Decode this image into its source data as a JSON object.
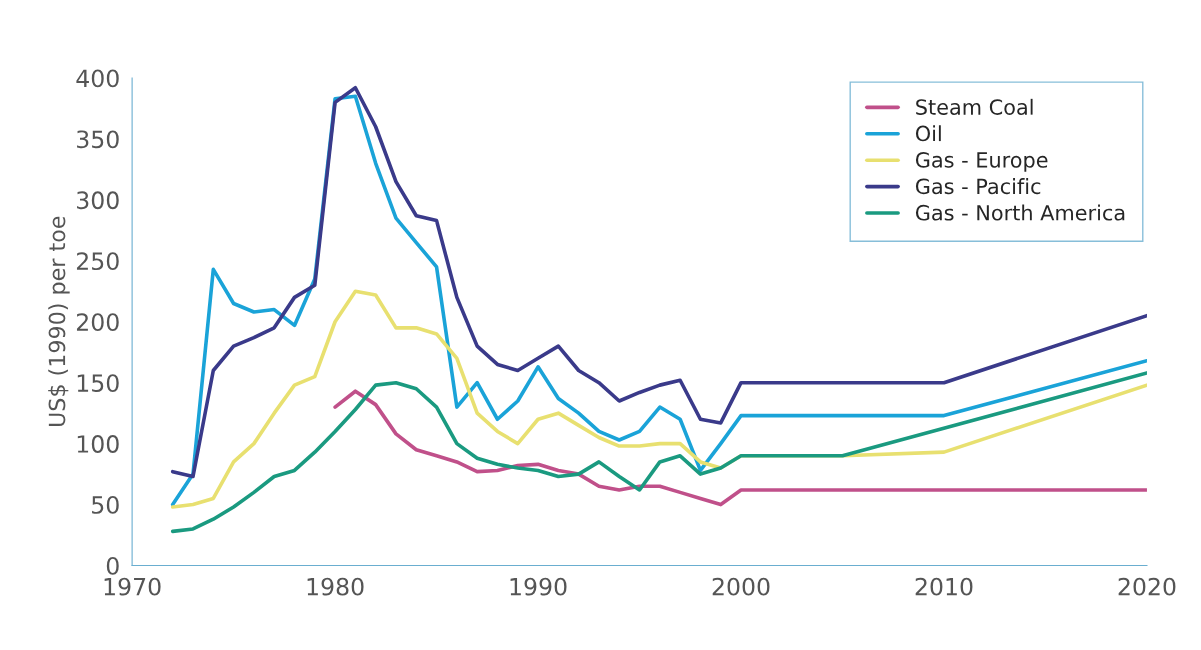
{
  "chart_data": {
    "type": "line",
    "ylabel": "US$ (1990) per toe",
    "xlim": [
      1970,
      2020
    ],
    "xticks": [
      1970,
      1980,
      1990,
      2000,
      2010,
      2020
    ],
    "ylim": [
      0,
      400
    ],
    "yticks": [
      0,
      50,
      100,
      150,
      200,
      250,
      300,
      350,
      400
    ],
    "grid": false,
    "legend": "top right",
    "marker": "none",
    "line_style": "solid",
    "series": [
      {
        "name": "Steam Coal",
        "color": "#c0508a",
        "x": [
          1980,
          1981,
          1982,
          1983,
          1984,
          1985,
          1986,
          1987,
          1988,
          1989,
          1990,
          1991,
          1992,
          1993,
          1994,
          1995,
          1996,
          1997,
          1998,
          1999,
          2000,
          2020
        ],
        "values": [
          130,
          143,
          132,
          108,
          95,
          90,
          85,
          77,
          78,
          82,
          83,
          78,
          75,
          65,
          62,
          65,
          65,
          60,
          55,
          50,
          62,
          62
        ]
      },
      {
        "name": "Oil",
        "color": "#1aa3d8",
        "x": [
          1972,
          1973,
          1974,
          1975,
          1976,
          1977,
          1978,
          1979,
          1980,
          1981,
          1982,
          1983,
          1984,
          1985,
          1986,
          1987,
          1988,
          1989,
          1990,
          1991,
          1992,
          1993,
          1994,
          1995,
          1996,
          1997,
          1998,
          1999,
          2000,
          2010,
          2020
        ],
        "values": [
          50,
          75,
          243,
          215,
          208,
          210,
          197,
          235,
          383,
          385,
          330,
          285,
          265,
          245,
          130,
          150,
          120,
          135,
          163,
          137,
          125,
          110,
          103,
          110,
          130,
          120,
          78,
          100,
          123,
          123,
          168
        ]
      },
      {
        "name": "Gas - Europe",
        "color": "#e8e070",
        "x": [
          1972,
          1973,
          1974,
          1975,
          1976,
          1977,
          1978,
          1979,
          1980,
          1981,
          1982,
          1983,
          1984,
          1985,
          1986,
          1987,
          1988,
          1989,
          1990,
          1991,
          1992,
          1993,
          1994,
          1995,
          1996,
          1997,
          1998,
          1999,
          2000,
          2005,
          2010,
          2020
        ],
        "values": [
          48,
          50,
          55,
          85,
          100,
          125,
          148,
          155,
          200,
          225,
          222,
          195,
          195,
          190,
          170,
          125,
          110,
          100,
          120,
          125,
          115,
          105,
          98,
          98,
          100,
          100,
          85,
          80,
          90,
          90,
          93,
          148
        ]
      },
      {
        "name": "Gas - Pacific",
        "color": "#3a3a8a",
        "x": [
          1972,
          1973,
          1974,
          1975,
          1976,
          1977,
          1978,
          1979,
          1980,
          1981,
          1982,
          1983,
          1984,
          1985,
          1986,
          1987,
          1988,
          1989,
          1990,
          1991,
          1992,
          1993,
          1994,
          1995,
          1996,
          1997,
          1998,
          1999,
          2000,
          2010,
          2020
        ],
        "values": [
          77,
          73,
          160,
          180,
          187,
          195,
          220,
          230,
          380,
          392,
          360,
          315,
          287,
          283,
          220,
          180,
          165,
          160,
          170,
          180,
          160,
          150,
          135,
          142,
          148,
          152,
          120,
          117,
          150,
          150,
          205
        ]
      },
      {
        "name": "Gas - North America",
        "color": "#1a9a80",
        "x": [
          1972,
          1973,
          1974,
          1975,
          1976,
          1977,
          1978,
          1979,
          1980,
          1981,
          1982,
          1983,
          1984,
          1985,
          1986,
          1987,
          1988,
          1989,
          1990,
          1991,
          1992,
          1993,
          1994,
          1995,
          1996,
          1997,
          1998,
          1999,
          2000,
          2005,
          2020
        ],
        "values": [
          28,
          30,
          38,
          48,
          60,
          73,
          78,
          93,
          110,
          128,
          148,
          150,
          145,
          130,
          100,
          88,
          83,
          80,
          78,
          73,
          75,
          85,
          73,
          62,
          85,
          90,
          75,
          80,
          90,
          90,
          158
        ]
      }
    ]
  }
}
